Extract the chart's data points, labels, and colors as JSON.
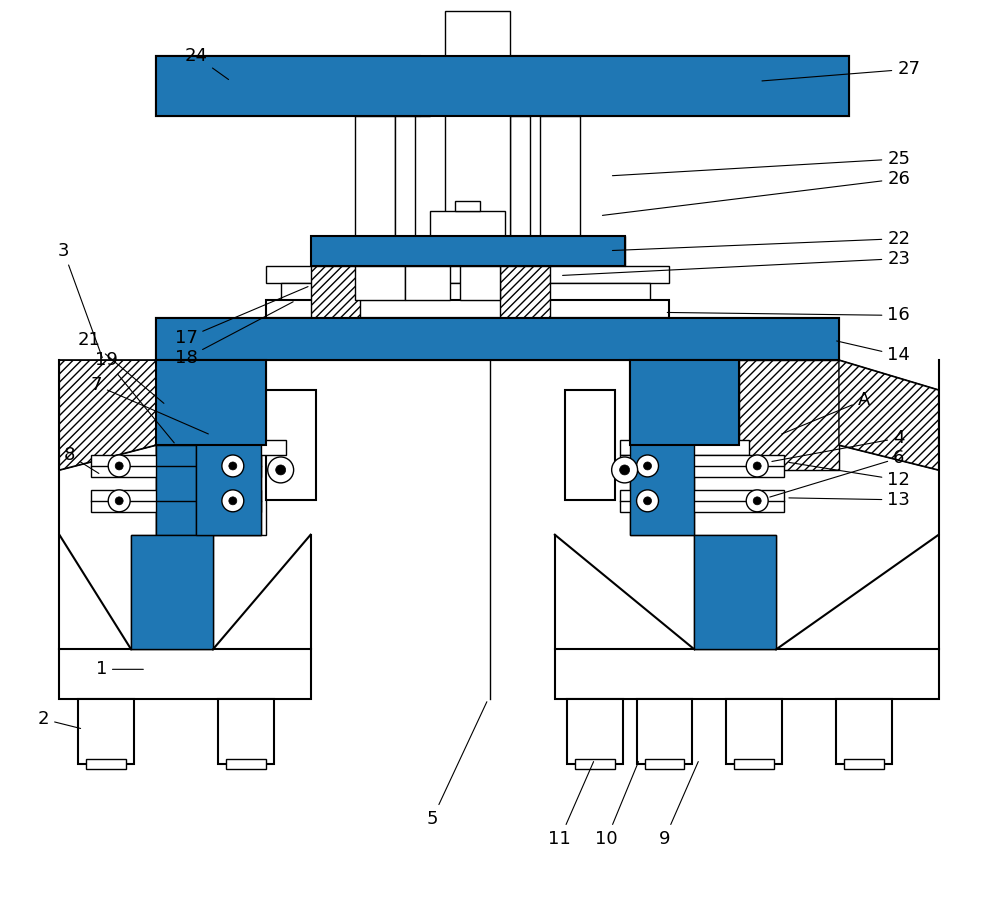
{
  "bg_color": "#ffffff",
  "line_color": "#000000",
  "fig_w": 10.0,
  "fig_h": 8.99,
  "dpi": 100
}
